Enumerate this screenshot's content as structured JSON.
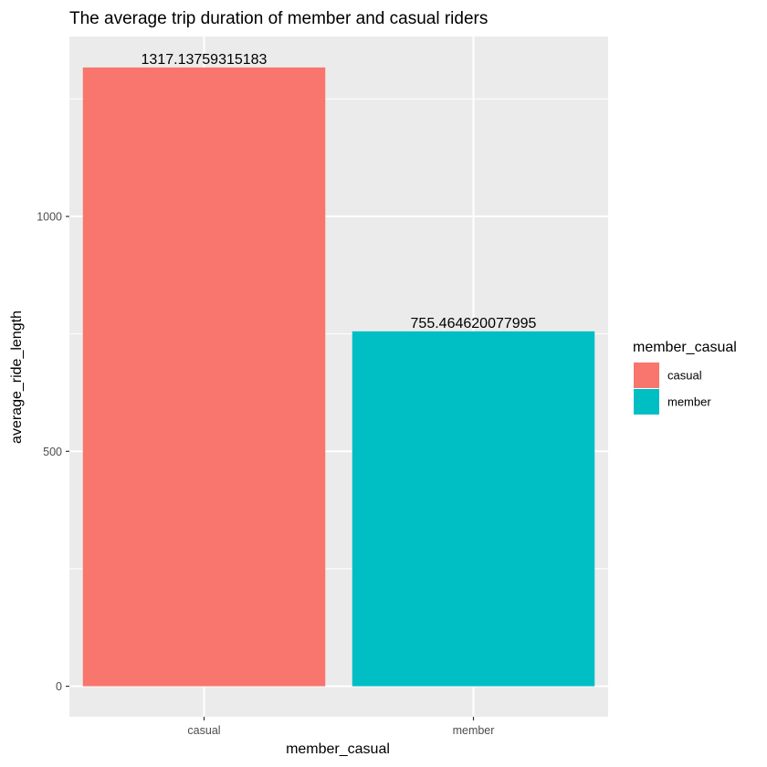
{
  "chart_data": {
    "type": "bar",
    "title": "The average trip duration of member and casual riders",
    "xlabel": "member_casual",
    "ylabel": "average_ride_length",
    "categories": [
      "casual",
      "member"
    ],
    "values": [
      1317.13759315183,
      755.464620077995
    ],
    "data_labels": [
      "1317.13759315183",
      "755.464620077995"
    ],
    "colors": [
      "#F8766D",
      "#00BFC4"
    ],
    "ylim": [
      -65,
      1383
    ],
    "yticks": [
      0,
      500,
      1000
    ],
    "ytick_labels": [
      "0",
      "500",
      "1000"
    ],
    "grid": true,
    "panel_background": "#EBEBEB",
    "legend": {
      "title": "member_casual",
      "position": "right",
      "entries": [
        "casual",
        "member"
      ]
    }
  }
}
